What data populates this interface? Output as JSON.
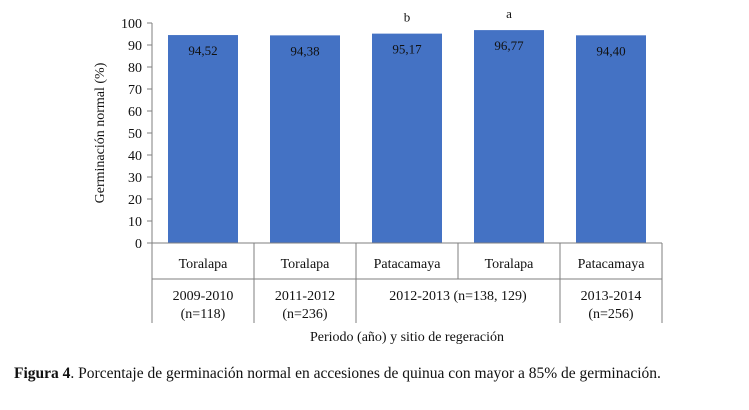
{
  "chart_data": {
    "type": "bar",
    "ylabel": "Germinación normal (%)",
    "xlabel": "Periodo (año) y sitio de regeración",
    "ylim": [
      0,
      100
    ],
    "yticks": [
      0,
      10,
      20,
      30,
      40,
      50,
      60,
      70,
      80,
      90,
      100
    ],
    "grid": false,
    "bar_color": "#4472c4",
    "categories": [
      "Toralapa",
      "Toralapa",
      "Patacamaya",
      "Toralapa",
      "Patacamaya"
    ],
    "values": [
      94.52,
      94.38,
      95.17,
      96.77,
      94.4
    ],
    "value_labels": [
      "94,52",
      "94,38",
      "95,17",
      "96,77",
      "94,40"
    ],
    "annotations": [
      "",
      "",
      "b",
      "a",
      ""
    ],
    "groups": [
      {
        "label": "2009-2010",
        "sublabel": "(n=118)",
        "span": 1
      },
      {
        "label": "2011-2012",
        "sublabel": "(n=236)",
        "span": 1
      },
      {
        "label": "2012-2013 (n=138, 129)",
        "sublabel": "",
        "span": 2
      },
      {
        "label": "2013-2014",
        "sublabel": "(n=256)",
        "span": 1
      }
    ]
  },
  "caption": {
    "label": "Figura 4",
    "text": ". Porcentaje de germinación normal en accesiones de quinua con mayor a 85% de germinación."
  }
}
